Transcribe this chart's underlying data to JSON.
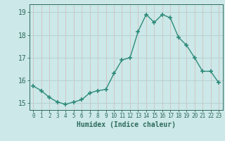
{
  "x": [
    0,
    1,
    2,
    3,
    4,
    5,
    6,
    7,
    8,
    9,
    10,
    11,
    12,
    13,
    14,
    15,
    16,
    17,
    18,
    19,
    20,
    21,
    22,
    23
  ],
  "y": [
    15.75,
    15.55,
    15.25,
    15.05,
    14.95,
    15.05,
    15.15,
    15.45,
    15.55,
    15.6,
    16.3,
    16.9,
    17.0,
    18.15,
    18.9,
    18.55,
    18.9,
    18.75,
    17.9,
    17.55,
    17.0,
    16.4,
    16.4,
    15.9
  ],
  "line_color": "#2e8b7a",
  "marker": "+",
  "marker_size": 4,
  "marker_lw": 1.2,
  "bg_color": "#cce8e8",
  "grid_color_h": "#b8d4d4",
  "grid_color_v": "#d4b8b8",
  "xlabel": "Humidex (Indice chaleur)",
  "xlim": [
    -0.5,
    23.5
  ],
  "ylim": [
    14.7,
    19.35
  ],
  "yticks": [
    15,
    16,
    17,
    18,
    19
  ],
  "xticks": [
    0,
    1,
    2,
    3,
    4,
    5,
    6,
    7,
    8,
    9,
    10,
    11,
    12,
    13,
    14,
    15,
    16,
    17,
    18,
    19,
    20,
    21,
    22,
    23
  ],
  "tick_color": "#2e6b5e",
  "label_color": "#2e6b5e",
  "xlabel_fontsize": 7,
  "ytick_fontsize": 7,
  "xtick_fontsize": 5.5,
  "line_width": 1.0
}
